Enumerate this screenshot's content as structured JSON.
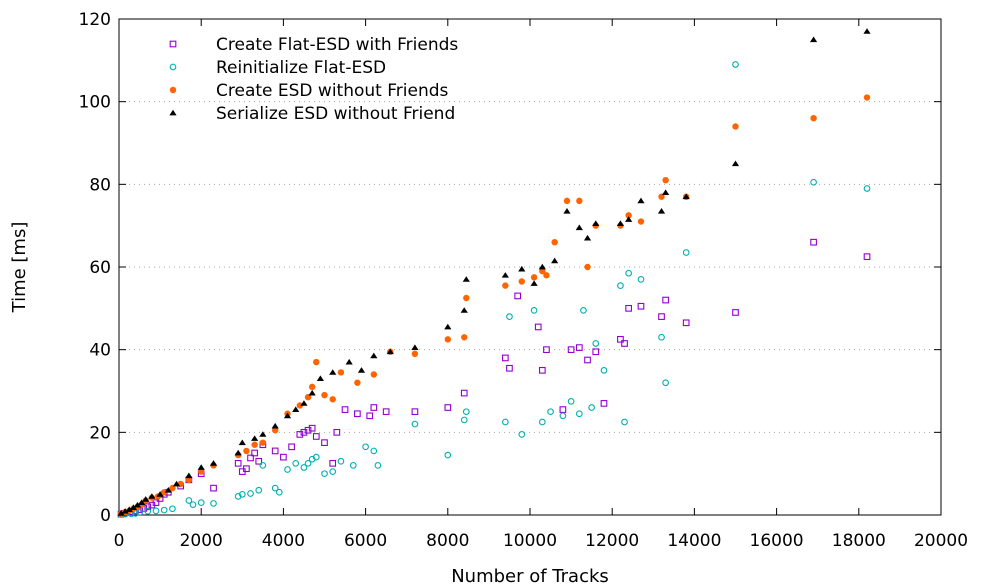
{
  "chart_data": {
    "type": "scatter",
    "xlabel": "Number of Tracks",
    "ylabel": "Time [ms]",
    "xlim": [
      0,
      20000
    ],
    "ylim": [
      0,
      120
    ],
    "xticks": [
      0,
      2000,
      4000,
      6000,
      8000,
      10000,
      12000,
      14000,
      16000,
      18000,
      20000
    ],
    "yticks": [
      0,
      20,
      40,
      60,
      80,
      100,
      120
    ],
    "grid": "dotted horizontal",
    "legend_position": "top-left",
    "series": [
      {
        "name": "Create Flat-ESD with Friends",
        "color": "#9400d3",
        "marker": "open-square",
        "points": [
          [
            50,
            0.2
          ],
          [
            120,
            0.4
          ],
          [
            200,
            0.6
          ],
          [
            300,
            0.8
          ],
          [
            400,
            1.0
          ],
          [
            500,
            1.3
          ],
          [
            600,
            1.6
          ],
          [
            700,
            2.0
          ],
          [
            800,
            2.4
          ],
          [
            900,
            3.0
          ],
          [
            1000,
            4.0
          ],
          [
            1100,
            5.0
          ],
          [
            1200,
            5.5
          ],
          [
            1500,
            7.0
          ],
          [
            1700,
            8.5
          ],
          [
            2000,
            10.0
          ],
          [
            2300,
            6.5
          ],
          [
            2900,
            12.5
          ],
          [
            3000,
            10.5
          ],
          [
            3100,
            11.2
          ],
          [
            3200,
            13.8
          ],
          [
            3300,
            15.0
          ],
          [
            3400,
            13.0
          ],
          [
            3500,
            17.0
          ],
          [
            3800,
            15.5
          ],
          [
            4000,
            14.0
          ],
          [
            4200,
            16.5
          ],
          [
            4400,
            19.5
          ],
          [
            4500,
            20.0
          ],
          [
            4600,
            20.5
          ],
          [
            4700,
            21.0
          ],
          [
            4800,
            19.0
          ],
          [
            5000,
            17.5
          ],
          [
            5200,
            12.5
          ],
          [
            5300,
            20.0
          ],
          [
            5500,
            25.5
          ],
          [
            5800,
            24.5
          ],
          [
            6100,
            24.0
          ],
          [
            6200,
            26.0
          ],
          [
            6500,
            25.0
          ],
          [
            7200,
            25.0
          ],
          [
            8000,
            26.0
          ],
          [
            8400,
            29.5
          ],
          [
            9400,
            38.0
          ],
          [
            9500,
            35.5
          ],
          [
            9700,
            53.0
          ],
          [
            10200,
            45.5
          ],
          [
            10300,
            35.0
          ],
          [
            10400,
            40.0
          ],
          [
            10800,
            25.5
          ],
          [
            11000,
            40.0
          ],
          [
            11200,
            40.5
          ],
          [
            11400,
            37.5
          ],
          [
            11600,
            39.5
          ],
          [
            11800,
            27.0
          ],
          [
            12200,
            42.5
          ],
          [
            12300,
            41.5
          ],
          [
            12400,
            50.0
          ],
          [
            12700,
            50.5
          ],
          [
            13200,
            48.0
          ],
          [
            13300,
            52.0
          ],
          [
            13800,
            46.5
          ],
          [
            15000,
            49.0
          ],
          [
            16900,
            66.0
          ],
          [
            18200,
            62.5
          ]
        ]
      },
      {
        "name": "Reinitialize Flat-ESD",
        "color": "#00b0b0",
        "marker": "open-circle",
        "points": [
          [
            50,
            0.1
          ],
          [
            150,
            0.2
          ],
          [
            300,
            0.3
          ],
          [
            400,
            0.4
          ],
          [
            500,
            0.6
          ],
          [
            700,
            0.9
          ],
          [
            900,
            1.0
          ],
          [
            1100,
            1.2
          ],
          [
            1300,
            1.5
          ],
          [
            1700,
            3.5
          ],
          [
            1800,
            2.5
          ],
          [
            2000,
            3.0
          ],
          [
            2300,
            2.8
          ],
          [
            2900,
            4.5
          ],
          [
            3000,
            5.0
          ],
          [
            3200,
            5.2
          ],
          [
            3400,
            6.0
          ],
          [
            3500,
            12.0
          ],
          [
            3800,
            6.5
          ],
          [
            3900,
            5.5
          ],
          [
            4100,
            11.0
          ],
          [
            4300,
            12.5
          ],
          [
            4500,
            11.5
          ],
          [
            4600,
            12.5
          ],
          [
            4700,
            13.5
          ],
          [
            4800,
            14.0
          ],
          [
            5000,
            10.0
          ],
          [
            5200,
            10.5
          ],
          [
            5400,
            13.0
          ],
          [
            5700,
            12.0
          ],
          [
            6000,
            16.5
          ],
          [
            6200,
            15.5
          ],
          [
            6300,
            12.0
          ],
          [
            7200,
            22.0
          ],
          [
            8000,
            14.5
          ],
          [
            8400,
            23.0
          ],
          [
            8450,
            25.0
          ],
          [
            9400,
            22.5
          ],
          [
            9500,
            48.0
          ],
          [
            9800,
            19.5
          ],
          [
            10100,
            49.5
          ],
          [
            10300,
            22.5
          ],
          [
            10500,
            25.0
          ],
          [
            10800,
            24.0
          ],
          [
            11000,
            27.5
          ],
          [
            11200,
            24.5
          ],
          [
            11300,
            49.5
          ],
          [
            11500,
            26.0
          ],
          [
            11600,
            41.5
          ],
          [
            11800,
            35.0
          ],
          [
            12200,
            55.5
          ],
          [
            12300,
            22.5
          ],
          [
            12400,
            58.5
          ],
          [
            12700,
            57.0
          ],
          [
            13200,
            43.0
          ],
          [
            13300,
            32.0
          ],
          [
            13800,
            63.5
          ],
          [
            15000,
            109.0
          ],
          [
            16900,
            80.5
          ],
          [
            18200,
            79.0
          ]
        ]
      },
      {
        "name": "Create ESD without Friends",
        "color": "#ff6400",
        "marker": "filled-circle",
        "points": [
          [
            50,
            0.3
          ],
          [
            150,
            0.7
          ],
          [
            250,
            1.0
          ],
          [
            350,
            1.5
          ],
          [
            450,
            2.0
          ],
          [
            550,
            2.5
          ],
          [
            650,
            3.5
          ],
          [
            800,
            4.2
          ],
          [
            950,
            4.5
          ],
          [
            1100,
            5.5
          ],
          [
            1300,
            6.5
          ],
          [
            1500,
            7.5
          ],
          [
            1700,
            8.5
          ],
          [
            2000,
            10.5
          ],
          [
            2300,
            12.0
          ],
          [
            2900,
            14.5
          ],
          [
            3100,
            15.5
          ],
          [
            3300,
            17.0
          ],
          [
            3500,
            17.5
          ],
          [
            3800,
            20.5
          ],
          [
            4100,
            24.5
          ],
          [
            4400,
            26.5
          ],
          [
            4600,
            28.5
          ],
          [
            4700,
            31.0
          ],
          [
            4800,
            37.0
          ],
          [
            5000,
            29.0
          ],
          [
            5200,
            28.0
          ],
          [
            5400,
            34.5
          ],
          [
            5800,
            32.0
          ],
          [
            6200,
            34.0
          ],
          [
            6600,
            39.5
          ],
          [
            7200,
            39.0
          ],
          [
            8000,
            42.5
          ],
          [
            8400,
            43.0
          ],
          [
            8450,
            52.5
          ],
          [
            9400,
            55.5
          ],
          [
            9800,
            56.5
          ],
          [
            10100,
            57.5
          ],
          [
            10300,
            59.0
          ],
          [
            10400,
            58.0
          ],
          [
            10600,
            66.0
          ],
          [
            10900,
            76.0
          ],
          [
            11200,
            76.0
          ],
          [
            11400,
            60.0
          ],
          [
            11600,
            70.0
          ],
          [
            12200,
            70.0
          ],
          [
            12400,
            72.5
          ],
          [
            12700,
            71.0
          ],
          [
            13200,
            77.0
          ],
          [
            13300,
            81.0
          ],
          [
            13800,
            77.0
          ],
          [
            15000,
            94.0
          ],
          [
            16900,
            96.0
          ],
          [
            18200,
            101.0
          ]
        ]
      },
      {
        "name": "Serialize ESD without Friend",
        "color": "#000000",
        "marker": "filled-triangle",
        "points": [
          [
            50,
            0.4
          ],
          [
            150,
            0.9
          ],
          [
            250,
            1.3
          ],
          [
            350,
            1.8
          ],
          [
            450,
            2.4
          ],
          [
            550,
            3.0
          ],
          [
            650,
            3.8
          ],
          [
            800,
            4.5
          ],
          [
            1000,
            5.0
          ],
          [
            1200,
            6.0
          ],
          [
            1400,
            7.5
          ],
          [
            1700,
            9.5
          ],
          [
            2000,
            11.5
          ],
          [
            2300,
            12.5
          ],
          [
            2900,
            15.0
          ],
          [
            3000,
            17.5
          ],
          [
            3300,
            18.5
          ],
          [
            3500,
            19.5
          ],
          [
            3800,
            21.5
          ],
          [
            4100,
            24.0
          ],
          [
            4300,
            25.5
          ],
          [
            4500,
            27.0
          ],
          [
            4700,
            29.5
          ],
          [
            4900,
            33.0
          ],
          [
            5200,
            34.5
          ],
          [
            5600,
            37.0
          ],
          [
            5900,
            35.0
          ],
          [
            6200,
            38.5
          ],
          [
            6600,
            39.5
          ],
          [
            7200,
            40.5
          ],
          [
            8000,
            45.5
          ],
          [
            8400,
            49.5
          ],
          [
            8450,
            57.0
          ],
          [
            9400,
            58.0
          ],
          [
            9800,
            59.5
          ],
          [
            10100,
            56.0
          ],
          [
            10300,
            60.0
          ],
          [
            10600,
            61.5
          ],
          [
            10900,
            73.5
          ],
          [
            11200,
            69.5
          ],
          [
            11400,
            67.0
          ],
          [
            11600,
            70.5
          ],
          [
            12200,
            70.5
          ],
          [
            12400,
            71.5
          ],
          [
            12700,
            76.0
          ],
          [
            13200,
            73.5
          ],
          [
            13300,
            78.0
          ],
          [
            13800,
            77.0
          ],
          [
            15000,
            85.0
          ],
          [
            16900,
            115.0
          ],
          [
            18200,
            117.0
          ]
        ]
      }
    ]
  }
}
